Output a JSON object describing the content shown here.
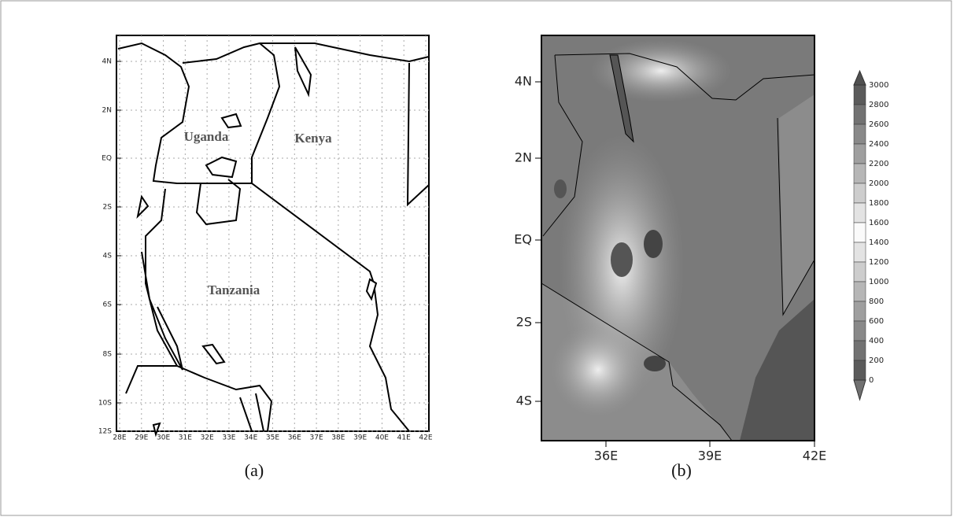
{
  "panel_a": {
    "caption": "(a)",
    "y_labels": [
      "4N",
      "2N",
      "EQ",
      "2S",
      "4S",
      "6S",
      "8S",
      "10S",
      "12S"
    ],
    "x_labels": [
      "28E",
      "29E",
      "30E",
      "31E",
      "32E",
      "33E",
      "34E",
      "35E",
      "36E",
      "37E",
      "38E",
      "39E",
      "40E",
      "41E",
      "42E"
    ],
    "countries": [
      "Uganda",
      "Kenya",
      "Tanzania"
    ]
  },
  "panel_b": {
    "caption": "(b)",
    "y_labels": [
      "4N",
      "2N",
      "EQ",
      "2S",
      "4S"
    ],
    "x_labels": [
      "36E",
      "39E",
      "42E"
    ],
    "colorbar_labels": [
      "3000",
      "2800",
      "2600",
      "2400",
      "2200",
      "2000",
      "1800",
      "1600",
      "1400",
      "1200",
      "1000",
      "800",
      "600",
      "400",
      "200",
      "0"
    ]
  }
}
